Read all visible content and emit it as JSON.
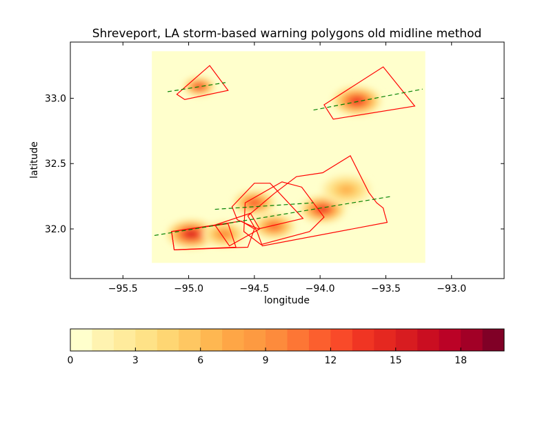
{
  "chart_data": {
    "type": "heatmap",
    "title": "Shreveport, LA storm-based warning polygons old midline method",
    "xlabel": "longitude",
    "ylabel": "latitude",
    "xlim": [
      -95.9,
      -92.6
    ],
    "ylim": [
      31.62,
      33.43
    ],
    "xticks": [
      -95.5,
      -95.0,
      -94.5,
      -94.0,
      -93.5,
      -93.0
    ],
    "xtick_labels": [
      "−95.5",
      "−95.0",
      "−94.5",
      "−94.0",
      "−93.5",
      "−93.0"
    ],
    "yticks": [
      32.0,
      32.5,
      33.0
    ],
    "ytick_labels": [
      "32.0",
      "32.5",
      "33.0"
    ],
    "grid": false,
    "data_extent": {
      "lon": [
        -95.28,
        -93.2
      ],
      "lat": [
        31.74,
        33.36
      ]
    },
    "background_color": "#ffffcc",
    "polygon_color": "#ff0000",
    "midline_color": "#008000",
    "polygons": [
      {
        "name": "nw-cell",
        "points": [
          [
            -95.09,
            33.03
          ],
          [
            -94.84,
            33.25
          ],
          [
            -94.7,
            33.06
          ],
          [
            -95.03,
            32.99
          ]
        ]
      },
      {
        "name": "ne-cell",
        "points": [
          [
            -93.97,
            32.95
          ],
          [
            -93.52,
            33.24
          ],
          [
            -93.28,
            32.94
          ],
          [
            -93.9,
            32.84
          ]
        ]
      },
      {
        "name": "sw-1",
        "points": [
          [
            -95.13,
            31.98
          ],
          [
            -94.7,
            32.04
          ],
          [
            -94.64,
            31.86
          ],
          [
            -95.11,
            31.84
          ]
        ]
      },
      {
        "name": "sw-2",
        "points": [
          [
            -95.13,
            31.98
          ],
          [
            -94.6,
            32.06
          ],
          [
            -94.5,
            32.0
          ],
          [
            -94.55,
            31.86
          ],
          [
            -95.11,
            31.84
          ]
        ]
      },
      {
        "name": "mid-1",
        "points": [
          [
            -94.8,
            32.03
          ],
          [
            -94.53,
            32.12
          ],
          [
            -94.46,
            32.0
          ],
          [
            -94.69,
            31.87
          ]
        ]
      },
      {
        "name": "mid-2",
        "points": [
          [
            -94.67,
            32.17
          ],
          [
            -94.5,
            32.35
          ],
          [
            -94.38,
            32.35
          ],
          [
            -94.13,
            32.08
          ],
          [
            -94.47,
            32.0
          ],
          [
            -94.63,
            32.07
          ]
        ]
      },
      {
        "name": "mid-3",
        "points": [
          [
            -94.57,
            32.2
          ],
          [
            -94.29,
            32.36
          ],
          [
            -94.14,
            32.32
          ],
          [
            -93.97,
            32.09
          ],
          [
            -94.08,
            31.98
          ],
          [
            -94.45,
            31.88
          ],
          [
            -94.58,
            31.98
          ]
        ]
      },
      {
        "name": "se-big",
        "points": [
          [
            -94.35,
            32.27
          ],
          [
            -94.18,
            32.4
          ],
          [
            -93.98,
            32.43
          ],
          [
            -93.77,
            32.56
          ],
          [
            -93.63,
            32.28
          ],
          [
            -93.57,
            32.2
          ],
          [
            -93.52,
            32.16
          ],
          [
            -93.51,
            32.12
          ],
          [
            -93.49,
            32.05
          ],
          [
            -94.44,
            31.87
          ],
          [
            -94.48,
            31.98
          ],
          [
            -94.55,
            32.1
          ]
        ]
      }
    ],
    "midlines": [
      {
        "name": "nw-midline",
        "points": [
          [
            -95.16,
            33.05
          ],
          [
            -94.72,
            33.12
          ]
        ]
      },
      {
        "name": "ne-midline",
        "points": [
          [
            -94.05,
            32.91
          ],
          [
            -93.22,
            33.07
          ]
        ]
      },
      {
        "name": "s-midline-1",
        "points": [
          [
            -95.26,
            31.95
          ],
          [
            -93.45,
            32.25
          ]
        ]
      },
      {
        "name": "s-midline-2",
        "points": [
          [
            -94.8,
            32.15
          ],
          [
            -94.05,
            32.2
          ]
        ]
      }
    ],
    "hotspots": [
      {
        "lon": -94.92,
        "lat": 33.09,
        "value": 15,
        "r": 0.09
      },
      {
        "lon": -93.72,
        "lat": 32.98,
        "value": 15,
        "r": 0.14
      },
      {
        "lon": -94.98,
        "lat": 31.96,
        "value": 17,
        "r": 0.14
      },
      {
        "lon": -94.73,
        "lat": 31.96,
        "value": 10,
        "r": 0.12
      },
      {
        "lon": -94.5,
        "lat": 32.2,
        "value": 13,
        "r": 0.12
      },
      {
        "lon": -94.35,
        "lat": 32.02,
        "value": 12,
        "r": 0.12
      },
      {
        "lon": -93.98,
        "lat": 32.15,
        "value": 15,
        "r": 0.13
      },
      {
        "lon": -93.8,
        "lat": 32.3,
        "value": 7,
        "r": 0.14
      }
    ],
    "colorbar": {
      "min": 0,
      "max": 20,
      "step": 1,
      "ticks": [
        0,
        3,
        6,
        9,
        12,
        15,
        18
      ],
      "tick_labels": [
        "0",
        "3",
        "6",
        "9",
        "12",
        "15",
        "18"
      ],
      "colors": [
        "#ffffcc",
        "#fff3b0",
        "#ffeb9c",
        "#fee287",
        "#fed673",
        "#fec762",
        "#feb751",
        "#fea646",
        "#fd9a41",
        "#fd8b3c",
        "#fd7635",
        "#fc5f2e",
        "#f94a29",
        "#f03523",
        "#e52820",
        "#d81c20",
        "#ca0e21",
        "#bb0226",
        "#a20026",
        "#800026"
      ]
    }
  }
}
